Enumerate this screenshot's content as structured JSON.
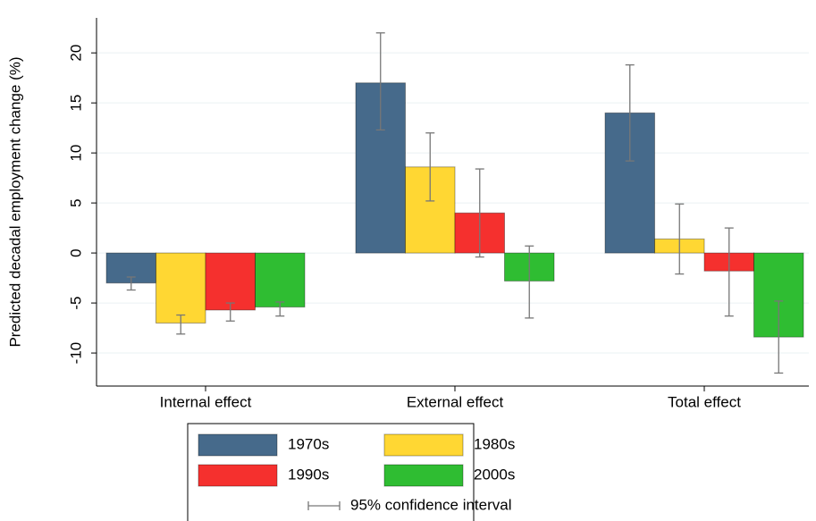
{
  "chart_data": {
    "type": "bar",
    "y_label": "Predicted decadal employment change (%)",
    "categories": [
      "Internal effect",
      "External effect",
      "Total effect"
    ],
    "series": [
      {
        "name": "1970s",
        "color": "#466a8b",
        "values": [
          -3.0,
          17.0,
          14.0
        ],
        "ci_low": [
          -3.7,
          12.3,
          9.2
        ],
        "ci_high": [
          -2.4,
          22.0,
          18.8
        ]
      },
      {
        "name": "1980s",
        "color": "#ffd733",
        "values": [
          -7.0,
          8.6,
          1.4
        ],
        "ci_low": [
          -8.1,
          5.2,
          -2.1
        ],
        "ci_high": [
          -6.2,
          12.0,
          4.9
        ]
      },
      {
        "name": "1990s",
        "color": "#f5302e",
        "values": [
          -5.7,
          4.0,
          -1.8
        ],
        "ci_low": [
          -6.8,
          -0.4,
          -6.3
        ],
        "ci_high": [
          -5.0,
          8.4,
          2.5
        ]
      },
      {
        "name": "2000s",
        "color": "#2fbd32",
        "values": [
          -5.4,
          -2.8,
          -8.4
        ],
        "ci_low": [
          -6.3,
          -6.5,
          -12.0
        ],
        "ci_high": [
          -4.9,
          0.7,
          -4.8
        ]
      }
    ],
    "ci_label": "95% confidence interval",
    "ylim": [
      -13.3,
      23.5
    ],
    "yticks": [
      -10,
      -5,
      0,
      5,
      10,
      15,
      20
    ],
    "grid": true
  }
}
